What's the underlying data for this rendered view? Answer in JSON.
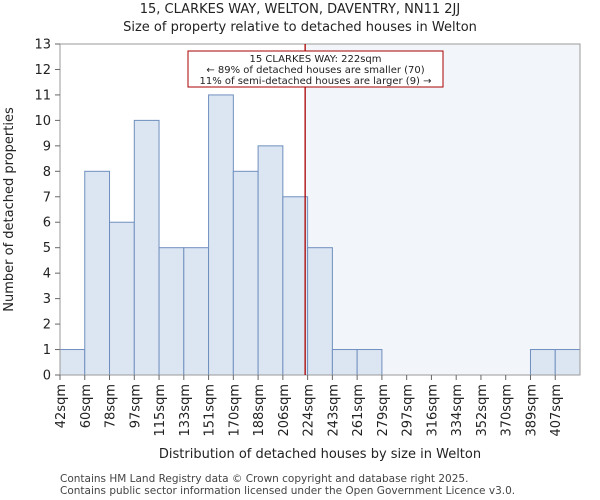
{
  "title": "15, CLARKES WAY, WELTON, DAVENTRY, NN11 2JJ",
  "subtitle": "Size of property relative to detached houses in Welton",
  "footer": [
    "Contains HM Land Registry data © Crown copyright and database right 2025.",
    "Contains public sector information licensed under the Open Government Licence v3.0."
  ],
  "colors": {
    "bar_fill": "#dce6f2",
    "bar_stroke": "#6f8fbf",
    "marker_line": "#aa0000",
    "annotation_border": "#aa0000",
    "highlight_region": "#e8eef8"
  },
  "chart_data": {
    "type": "bar",
    "title": "15, CLARKES WAY, WELTON, DAVENTRY, NN11 2JJ",
    "subtitle": "Size of property relative to detached houses in Welton",
    "xlabel": "Distribution of detached houses by size in Welton",
    "ylabel": "Number of detached properties",
    "categories": [
      "42sqm",
      "60sqm",
      "78sqm",
      "97sqm",
      "115sqm",
      "133sqm",
      "151sqm",
      "170sqm",
      "188sqm",
      "206sqm",
      "224sqm",
      "243sqm",
      "261sqm",
      "279sqm",
      "297sqm",
      "316sqm",
      "334sqm",
      "352sqm",
      "370sqm",
      "389sqm",
      "407sqm"
    ],
    "values": [
      1,
      8,
      6,
      10,
      5,
      5,
      11,
      8,
      9,
      7,
      5,
      1,
      1,
      0,
      0,
      0,
      0,
      0,
      0,
      1,
      1
    ],
    "ylim": [
      0,
      13
    ],
    "yticks": [
      0,
      1,
      2,
      3,
      4,
      5,
      6,
      7,
      8,
      9,
      10,
      11,
      12,
      13
    ],
    "grid": false,
    "marker": {
      "value_sqm": 222,
      "bin_position": 9.9
    },
    "annotation": {
      "lines": [
        "15 CLARKES WAY: 222sqm",
        "← 89% of detached houses are smaller (70)",
        "11% of semi-detached houses are larger (9) →"
      ]
    }
  }
}
